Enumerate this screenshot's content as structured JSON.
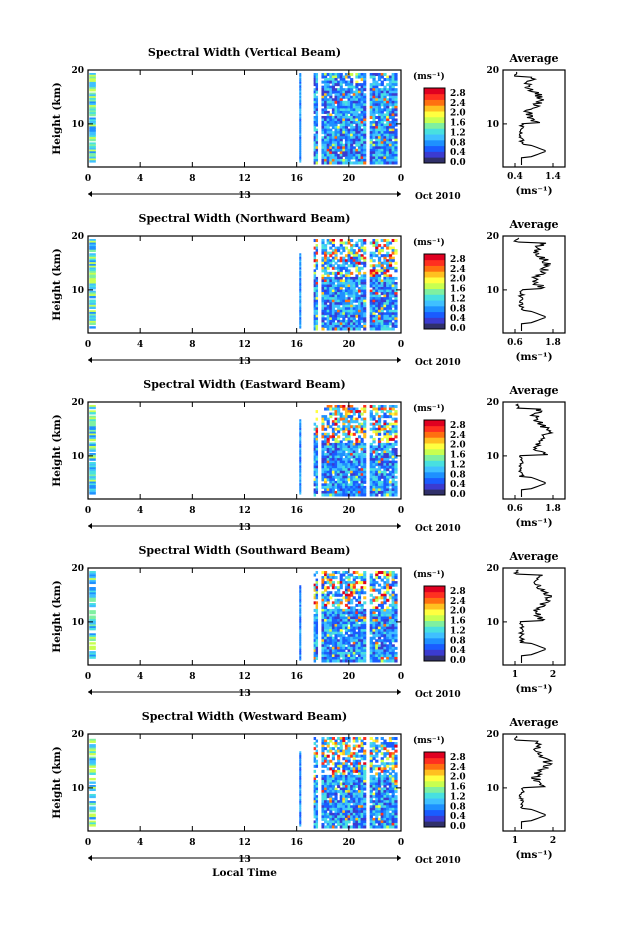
{
  "chart_data": {
    "type": "heatmap",
    "time_label": "Local Time",
    "date_label": "Oct 2010",
    "day_marker": "13",
    "x_ticks": [
      "0",
      "4",
      "8",
      "12",
      "16",
      "20",
      "0"
    ],
    "x_range": [
      0,
      24
    ],
    "height_range": [
      2,
      20
    ],
    "height_ticks": [
      "20",
      "10"
    ],
    "height_label": "Height (km)",
    "colorbar": {
      "unit": "(ms⁻¹)",
      "ticks": [
        "2.8",
        "2.4",
        "2.0",
        "1.6",
        "1.2",
        "0.8",
        "0.4",
        "0.0"
      ],
      "colors": [
        "#30306a",
        "#3b3bd0",
        "#1a5cff",
        "#1e90ff",
        "#3fc0ff",
        "#48e0e0",
        "#7ff0a0",
        "#c8ff50",
        "#ffff40",
        "#ffc020",
        "#ff7010",
        "#ff3020",
        "#e00020"
      ]
    },
    "panels": [
      {
        "title": "Spectral Width (Vertical Beam)",
        "avg_title": "Average",
        "avg_ticks": [
          "0.4",
          "1.4"
        ],
        "avg_unit": "(ms⁻¹)"
      },
      {
        "title": "Spectral Width (Northward Beam)",
        "avg_title": "Average",
        "avg_ticks": [
          "0.6",
          "1.8"
        ],
        "avg_unit": "(ms⁻¹)"
      },
      {
        "title": "Spectral Width (Eastward Beam)",
        "avg_title": "Average",
        "avg_ticks": [
          "0.6",
          "1.8"
        ],
        "avg_unit": "(ms⁻¹)"
      },
      {
        "title": "Spectral Width (Southward Beam)",
        "avg_title": "Average",
        "avg_ticks": [
          "1",
          "2"
        ],
        "avg_unit": "(ms⁻¹)"
      },
      {
        "title": "Spectral Width (Westward Beam)",
        "avg_title": "Average",
        "avg_ticks": [
          "1",
          "2"
        ],
        "avg_unit": "(ms⁻¹)"
      }
    ]
  }
}
